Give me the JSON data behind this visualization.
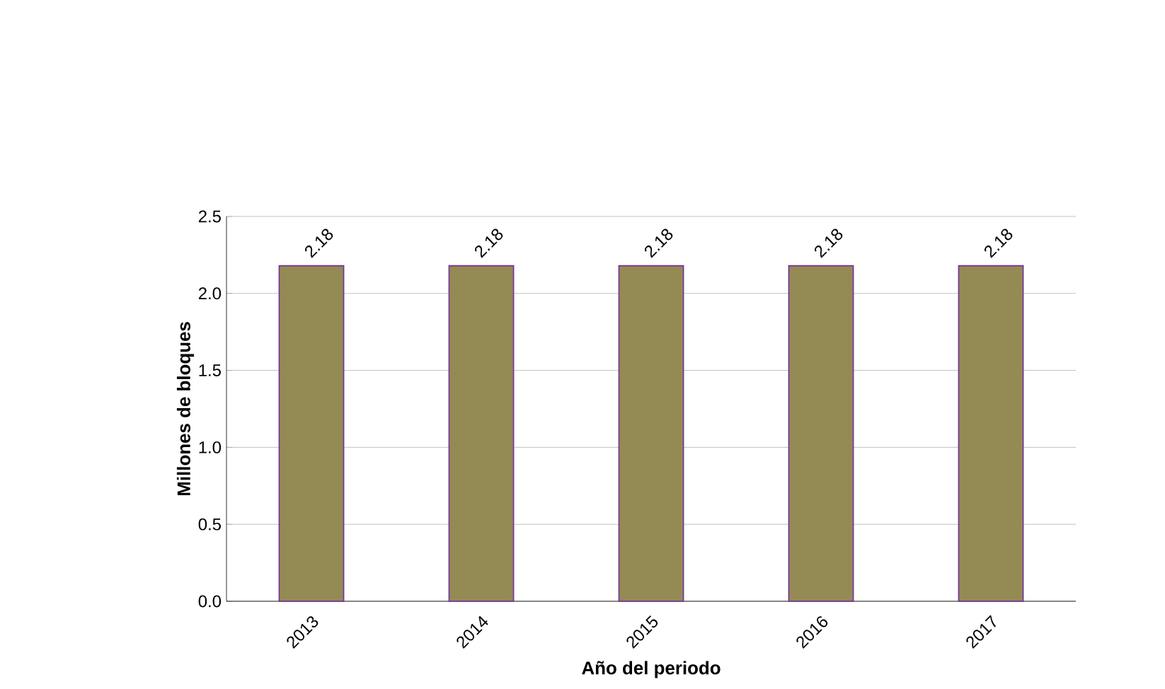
{
  "chart_data": {
    "type": "bar",
    "xlabel": "Año del periodo",
    "ylabel": "Millones de bloques",
    "categories": [
      "2013",
      "2014",
      "2015",
      "2016",
      "2017"
    ],
    "values": [
      2.18,
      2.18,
      2.18,
      2.18,
      2.18
    ],
    "color": "#948a54",
    "ylim": [
      0,
      2.5
    ],
    "yticks": [
      {
        "value": 0,
        "label": "0.0"
      },
      0.5,
      {
        "value": 1,
        "label": "1.0"
      },
      1.5,
      {
        "value": 2,
        "label": "2.0"
      },
      2.5
    ],
    "grid": "y",
    "data_labels": true
  }
}
